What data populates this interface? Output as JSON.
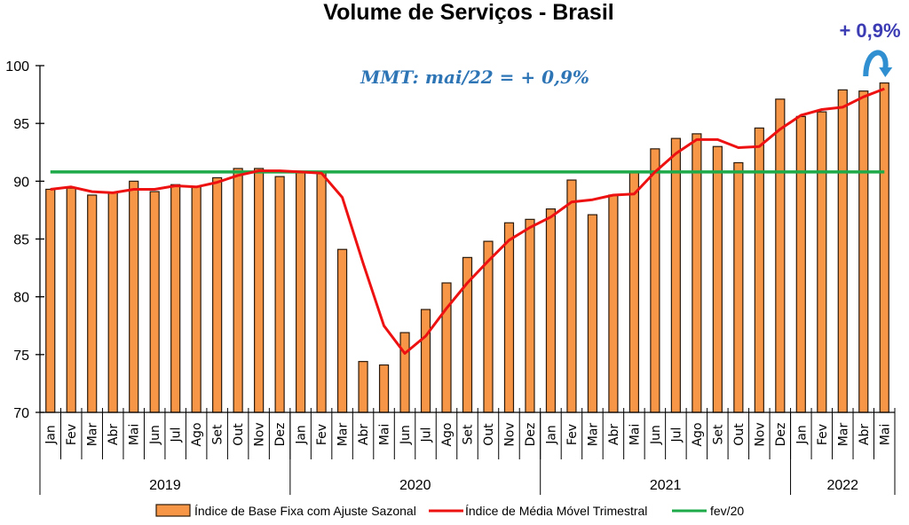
{
  "chart_data": {
    "type": "bar",
    "title": "Volume de Serviços - Brasil",
    "xlabel": "",
    "ylabel": "",
    "ylim": [
      70,
      100
    ],
    "yticks": [
      "70",
      "75",
      "80",
      "85",
      "90",
      "95",
      "100"
    ],
    "grid": false,
    "legend_position": "bottom",
    "categories": [
      "Jan",
      "Fev",
      "Mar",
      "Abr",
      "Mai",
      "Jun",
      "Jul",
      "Ago",
      "Set",
      "Out",
      "Nov",
      "Dez",
      "Jan",
      "Fev",
      "Mar",
      "Abr",
      "Mai",
      "Jun",
      "Jul",
      "Ago",
      "Set",
      "Out",
      "Nov",
      "Dez",
      "Jan",
      "Fev",
      "Mar",
      "Abr",
      "Mai",
      "Jun",
      "Jul",
      "Ago",
      "Set",
      "Out",
      "Nov",
      "Dez",
      "Jan",
      "Fev",
      "Mar",
      "Abr",
      "Mai"
    ],
    "year_groups": [
      {
        "label": "2019",
        "count": 12
      },
      {
        "label": "2020",
        "count": 12
      },
      {
        "label": "2021",
        "count": 12
      },
      {
        "label": "2022",
        "count": 5
      }
    ],
    "series": [
      {
        "name": "Índice de Base Fixa com Ajuste Sazonal",
        "kind": "bar",
        "color": "#f79646",
        "values": [
          89.3,
          89.4,
          88.8,
          89.0,
          90.0,
          89.1,
          89.7,
          89.5,
          90.3,
          91.1,
          91.1,
          90.4,
          90.8,
          90.8,
          84.1,
          74.4,
          74.1,
          76.9,
          78.9,
          81.2,
          83.4,
          84.8,
          86.4,
          86.7,
          87.6,
          90.1,
          87.1,
          88.8,
          90.8,
          92.8,
          93.7,
          94.1,
          93.0,
          91.6,
          94.6,
          97.1,
          95.6,
          96.0,
          97.9,
          97.8,
          98.5
        ]
      },
      {
        "name": "Índice de Média Móvel Trimestral",
        "kind": "line",
        "color": "#ee1111",
        "values": [
          89.3,
          89.5,
          89.1,
          89.0,
          89.3,
          89.3,
          89.6,
          89.5,
          89.9,
          90.5,
          90.9,
          90.9,
          90.8,
          90.7,
          88.6,
          82.9,
          77.5,
          75.1,
          76.6,
          79.0,
          81.2,
          83.1,
          84.9,
          86.0,
          86.9,
          88.2,
          88.4,
          88.8,
          88.9,
          90.8,
          92.4,
          93.6,
          93.6,
          92.9,
          93.0,
          94.5,
          95.7,
          96.2,
          96.4,
          97.3,
          98.0
        ]
      },
      {
        "name": "fev/20",
        "kind": "hline",
        "color": "#1faa4a",
        "value": 90.8
      }
    ],
    "annotations": [
      {
        "text": "MMT: mai/22 =  + 0,9%",
        "color": "#2e75b6"
      },
      {
        "text": "+ 0,9%",
        "color": "#3b3bb3",
        "target": "Mai 2022"
      }
    ]
  }
}
